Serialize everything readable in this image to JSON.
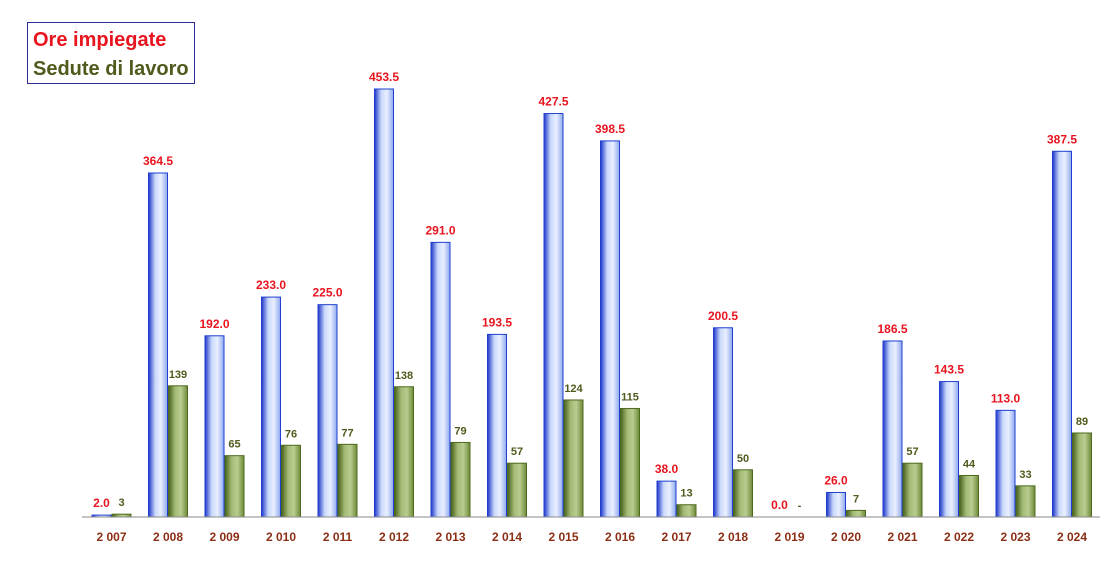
{
  "chart_data": {
    "type": "bar",
    "categories": [
      "2 007",
      "2 008",
      "2 009",
      "2 010",
      "2 011",
      "2 012",
      "2 013",
      "2 014",
      "2 015",
      "2 016",
      "2 017",
      "2 018",
      "2 019",
      "2 020",
      "2 021",
      "2 022",
      "2 023",
      "2 024"
    ],
    "series": [
      {
        "name": "Ore impiegate",
        "values": [
          2.0,
          364.5,
          192.0,
          233.0,
          225.0,
          453.5,
          291.0,
          193.5,
          427.5,
          398.5,
          38.0,
          200.5,
          0.0,
          26.0,
          186.5,
          143.5,
          113.0,
          387.5
        ],
        "labels": [
          "2.0",
          "364.5",
          "192.0",
          "233.0",
          "225.0",
          "453.5",
          "291.0",
          "193.5",
          "427.5",
          "398.5",
          "38.0",
          "200.5",
          "0.0",
          "26.0",
          "186.5",
          "143.5",
          "113.0",
          "387.5"
        ],
        "color": "#1e3fd0",
        "label_color": "#e8141e"
      },
      {
        "name": "Sedute di lavoro",
        "values": [
          3,
          139,
          65,
          76,
          77,
          138,
          79,
          57,
          124,
          115,
          13,
          50,
          0,
          7,
          57,
          44,
          33,
          89
        ],
        "labels": [
          "3",
          "139",
          "65",
          "76",
          "77",
          "138",
          "79",
          "57",
          "124",
          "115",
          "13",
          "50",
          "-",
          "7",
          "57",
          "44",
          "33",
          "89"
        ],
        "color": "#4e6a1e",
        "label_color": "#4e5b1c"
      }
    ],
    "ylim": [
      0,
      480
    ],
    "grid": false,
    "legend_position": "top-left",
    "tick_label_color": "#8b2e14"
  }
}
